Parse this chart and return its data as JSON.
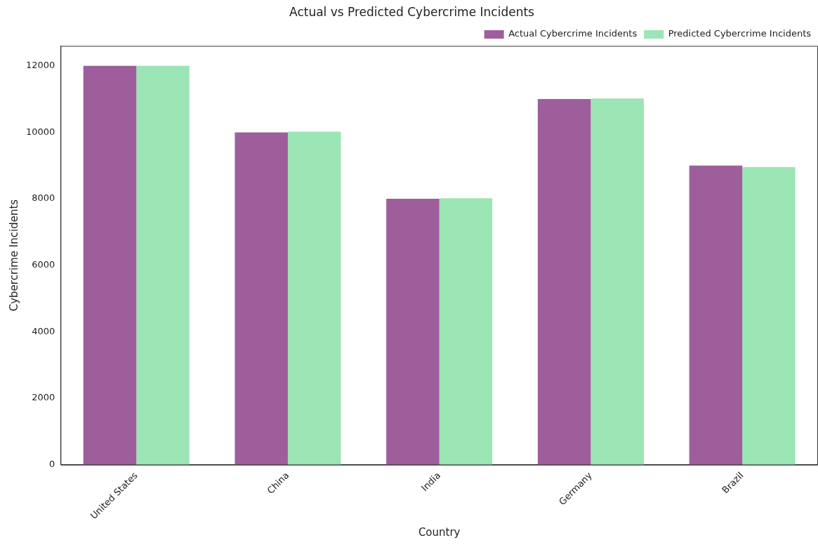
{
  "chart_data": {
    "type": "bar",
    "title": "Actual vs Predicted Cybercrime Incidents",
    "xlabel": "Country",
    "ylabel": "Cybercrime Incidents",
    "categories": [
      "United States",
      "China",
      "India",
      "Germany",
      "Brazil"
    ],
    "series": [
      {
        "name": "Actual Cybercrime Incidents",
        "color": "#9e5e9c",
        "values": [
          12000,
          10000,
          8000,
          11000,
          9000
        ]
      },
      {
        "name": "Predicted Cybercrime Incidents",
        "color": "#9ce5b4",
        "values": [
          12000,
          10020,
          8020,
          11020,
          8960
        ]
      }
    ],
    "ylim": [
      0,
      12600
    ],
    "yticks": [
      0,
      2000,
      4000,
      6000,
      8000,
      10000,
      12000
    ],
    "grid": false,
    "legend": "top right"
  }
}
